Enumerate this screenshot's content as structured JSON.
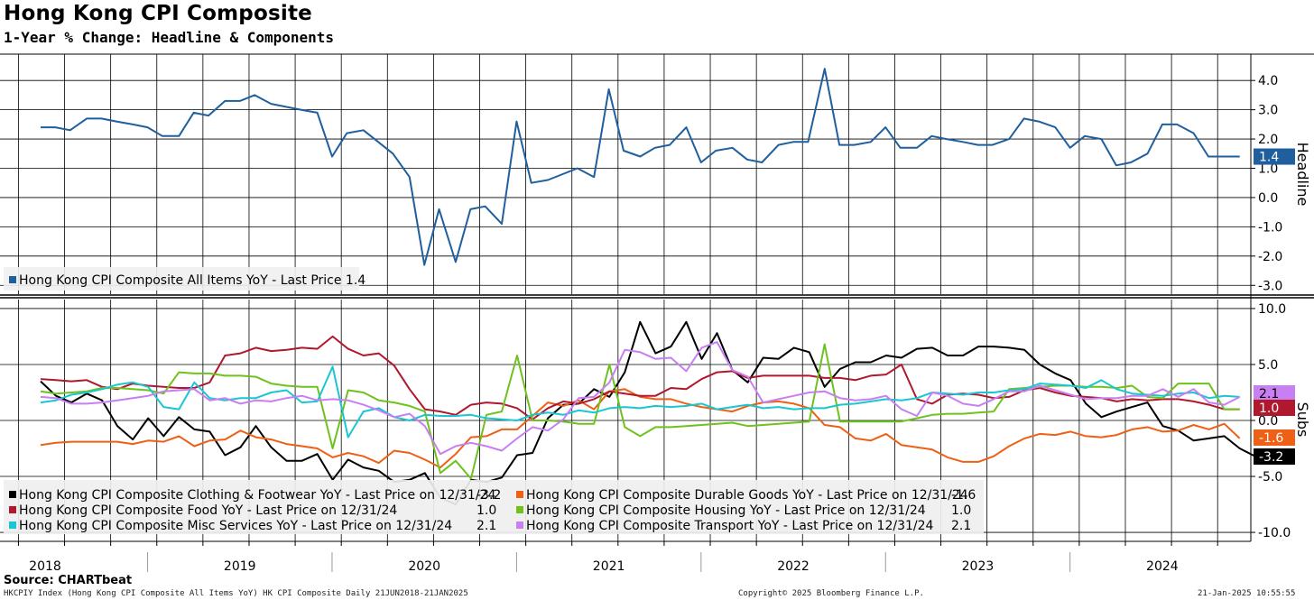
{
  "title": "Hong Kong CPI Composite",
  "subtitle": "1-Year % Change: Headline & Components",
  "source": "Source: CHARTbeat",
  "footer": {
    "left": "HKCPIY Index (Hong Kong CPI Composite All Items YoY) HK CPI Composite  Daily 21JUN2018-21JAN2025",
    "center": "Copyright© 2025 Bloomberg Finance L.P.",
    "right": "21-Jan-2025 10:55:55"
  },
  "chart_data": [
    {
      "type": "line",
      "panel": "top",
      "ylabel": "Headline",
      "ylim": [
        -3.3,
        4.9
      ],
      "yticks": [
        4.0,
        3.0,
        2.0,
        1.0,
        0.0,
        -1.0,
        -2.0,
        -3.0
      ],
      "ytick_labels": [
        "4.0",
        "3.0",
        "2.0",
        "1.0",
        "0.0",
        "-1.0",
        "-2.0",
        "-3.0"
      ],
      "grid": true,
      "legend_position": "bottom-left",
      "series": [
        {
          "name": "Hong Kong CPI Composite All Items YoY - Last Price 1.4",
          "color": "#1f5f9e",
          "last_label": "1.4",
          "x": [
            2018.42,
            2018.5,
            2018.58,
            2018.67,
            2018.75,
            2018.83,
            2018.92,
            2019.0,
            2019.08,
            2019.17,
            2019.25,
            2019.33,
            2019.42,
            2019.5,
            2019.58,
            2019.67,
            2019.75,
            2019.83,
            2019.92,
            2020.0,
            2020.08,
            2020.17,
            2020.25,
            2020.33,
            2020.42,
            2020.5,
            2020.58,
            2020.67,
            2020.75,
            2020.83,
            2020.92,
            2021.0,
            2021.08,
            2021.17,
            2021.25,
            2021.33,
            2021.42,
            2021.5,
            2021.58,
            2021.67,
            2021.75,
            2021.83,
            2021.92,
            2022.0,
            2022.08,
            2022.17,
            2022.25,
            2022.33,
            2022.42,
            2022.5,
            2022.58,
            2022.67,
            2022.75,
            2022.83,
            2022.92,
            2023.0,
            2023.08,
            2023.17,
            2023.25,
            2023.33,
            2023.42,
            2023.5,
            2023.58,
            2023.67,
            2023.75,
            2023.83,
            2023.92,
            2024.0,
            2024.08,
            2024.17,
            2024.25,
            2024.33,
            2024.42,
            2024.5,
            2024.58,
            2024.67,
            2024.75,
            2024.83,
            2024.92
          ],
          "values": [
            2.4,
            2.4,
            2.3,
            2.7,
            2.7,
            2.6,
            2.5,
            2.4,
            2.1,
            2.1,
            2.9,
            2.8,
            3.3,
            3.3,
            3.5,
            3.2,
            3.1,
            3.0,
            2.9,
            1.4,
            2.2,
            2.3,
            1.9,
            1.5,
            0.7,
            -2.3,
            -0.4,
            -2.2,
            -0.4,
            -0.3,
            -0.9,
            2.6,
            0.5,
            0.6,
            0.8,
            1.0,
            0.7,
            3.7,
            1.6,
            1.4,
            1.7,
            1.8,
            2.4,
            1.2,
            1.6,
            1.7,
            1.3,
            1.2,
            1.8,
            1.9,
            1.9,
            4.4,
            1.8,
            1.8,
            1.9,
            2.4,
            1.7,
            1.7,
            2.1,
            2.0,
            1.9,
            1.8,
            1.8,
            2.0,
            2.7,
            2.6,
            2.4,
            1.7,
            2.1,
            2.0,
            1.1,
            1.2,
            1.5,
            2.5,
            2.5,
            2.2,
            1.4,
            1.4,
            1.4
          ]
        }
      ]
    },
    {
      "type": "line",
      "panel": "bottom",
      "ylabel": "Subs",
      "ylim": [
        -10.8,
        10.8
      ],
      "yticks": [
        10.0,
        5.0,
        0.0,
        -5.0,
        -10.0
      ],
      "ytick_labels": [
        "10.0",
        "5.0",
        "0.0",
        "-5.0",
        "-10.0"
      ],
      "grid": true,
      "legend_position": "bottom-left",
      "x_start": 2018.42,
      "x_step": 0.08333,
      "series": [
        {
          "name": "Hong Kong CPI Composite Clothing & Footwear YoY - Last Price on 12/31/24",
          "legend_value": "-3.2",
          "color": "#000000",
          "last_label": "-3.2",
          "values": [
            3.5,
            2.2,
            1.6,
            2.4,
            1.8,
            -0.5,
            -1.7,
            0.2,
            -1.4,
            0.3,
            -0.8,
            -1.0,
            -3.1,
            -2.4,
            -0.5,
            -2.4,
            -3.6,
            -3.6,
            -3.0,
            -5.3,
            -3.5,
            -4.2,
            -4.5,
            -5.5,
            -5.3,
            -4.7,
            -6.9,
            -7.5,
            -5.3,
            -5.5,
            -5.1,
            -3.1,
            -2.9,
            0.2,
            1.4,
            1.5,
            2.8,
            2.1,
            4.3,
            8.8,
            6.0,
            6.6,
            8.8,
            5.5,
            7.8,
            4.5,
            3.4,
            5.6,
            5.5,
            6.5,
            6.1,
            3.0,
            4.6,
            5.2,
            5.2,
            5.8,
            5.6,
            6.4,
            6.5,
            5.8,
            5.8,
            6.6,
            6.6,
            6.5,
            6.3,
            5.0,
            4.2,
            3.6,
            1.5,
            0.3,
            0.8,
            1.2,
            1.6,
            -0.5,
            -0.9,
            -1.8,
            -1.6,
            -1.4,
            -2.5,
            -3.2
          ]
        },
        {
          "name": "Hong Kong CPI Composite Durable Goods YoY - Last Price on 12/31/24",
          "legend_value": "-1.6",
          "color": "#ee6015",
          "last_label": "-1.6",
          "values": [
            -2.2,
            -2.0,
            -1.9,
            -1.9,
            -1.9,
            -1.9,
            -2.1,
            -1.8,
            -1.9,
            -1.4,
            -2.3,
            -1.8,
            -1.7,
            -0.9,
            -1.5,
            -1.7,
            -2.1,
            -2.3,
            -2.5,
            -3.3,
            -2.9,
            -3.2,
            -3.8,
            -2.7,
            -2.9,
            -3.5,
            -4.2,
            -3.0,
            -1.5,
            -1.4,
            -0.8,
            -0.8,
            0.4,
            1.6,
            1.3,
            1.8,
            1.0,
            2.6,
            2.8,
            2.1,
            1.9,
            1.9,
            1.5,
            1.2,
            1.0,
            0.8,
            1.3,
            1.6,
            1.7,
            1.5,
            1.1,
            -0.4,
            -0.6,
            -1.6,
            -1.8,
            -1.2,
            -2.2,
            -2.4,
            -2.6,
            -3.3,
            -3.7,
            -3.7,
            -3.2,
            -2.3,
            -1.6,
            -1.2,
            -1.3,
            -1.0,
            -1.4,
            -1.5,
            -1.3,
            -0.8,
            -0.6,
            -1.0,
            -0.9,
            -0.4,
            -0.8,
            -0.3,
            -1.6
          ]
        },
        {
          "name": "Hong Kong CPI Composite Food YoY - Last Price on 12/31/24",
          "legend_value": "1.0",
          "color": "#b0182d",
          "last_label": "1.0",
          "values": [
            3.7,
            3.6,
            3.5,
            3.6,
            3.0,
            2.8,
            3.3,
            3.1,
            3.0,
            2.9,
            2.9,
            3.4,
            5.8,
            6.0,
            6.5,
            6.2,
            6.3,
            6.5,
            6.4,
            7.5,
            6.4,
            5.8,
            6.0,
            4.9,
            2.8,
            1.0,
            0.8,
            0.5,
            1.4,
            1.6,
            1.5,
            1.1,
            0.1,
            1.1,
            1.7,
            1.5,
            1.9,
            2.6,
            2.4,
            2.2,
            2.2,
            2.9,
            2.8,
            3.7,
            4.3,
            4.4,
            3.8,
            4.0,
            4.0,
            4.0,
            4.0,
            3.8,
            3.8,
            3.6,
            4.0,
            4.1,
            5.0,
            1.9,
            1.5,
            2.3,
            2.4,
            2.3,
            2.0,
            2.1,
            2.7,
            2.9,
            2.5,
            2.2,
            2.1,
            2.0,
            1.7,
            1.9,
            1.8,
            1.9,
            1.9,
            1.7,
            1.4,
            1.0,
            1.0
          ]
        },
        {
          "name": "Hong Kong CPI Composite Housing YoY - Last Price on 12/31/24",
          "legend_value": "1.0",
          "color": "#6ec21d",
          "last_label": "1.0",
          "values": [
            2.6,
            2.4,
            2.5,
            2.6,
            2.9,
            2.9,
            2.8,
            2.7,
            2.4,
            4.3,
            4.2,
            4.2,
            4.0,
            4.0,
            3.9,
            3.3,
            3.1,
            3.0,
            3.0,
            -2.5,
            2.7,
            2.5,
            1.8,
            1.6,
            1.3,
            0.8,
            -4.7,
            -3.6,
            -5.2,
            0.5,
            0.8,
            5.8,
            0.0,
            0.0,
            -0.1,
            -0.3,
            -0.3,
            5.0,
            -0.6,
            -1.4,
            -0.6,
            -0.6,
            -0.5,
            -0.4,
            -0.3,
            -0.2,
            -0.5,
            -0.4,
            -0.3,
            -0.2,
            -0.1,
            6.8,
            -0.1,
            -0.1,
            -0.1,
            -0.1,
            -0.1,
            0.2,
            0.5,
            0.6,
            0.6,
            0.7,
            0.8,
            2.8,
            2.9,
            3.0,
            3.1,
            3.1,
            3.0,
            3.0,
            2.9,
            3.1,
            2.1,
            2.0,
            3.3,
            3.3,
            3.3,
            1.0,
            1.0
          ]
        },
        {
          "name": "Hong Kong CPI Composite Misc Services YoY - Last Price on 12/31/24",
          "legend_value": "2.1",
          "color": "#19c6d2",
          "last_label": "2.1",
          "values": [
            1.6,
            1.8,
            2.3,
            2.5,
            2.8,
            3.2,
            3.4,
            3.0,
            1.2,
            1.0,
            3.4,
            2.0,
            1.8,
            2.0,
            2.0,
            2.5,
            2.7,
            1.6,
            1.7,
            4.8,
            -1.5,
            0.8,
            1.1,
            0.3,
            0.0,
            0.5,
            0.4,
            0.4,
            0.5,
            0.2,
            0.1,
            0.0,
            0.5,
            0.7,
            0.5,
            0.9,
            0.7,
            1.1,
            1.2,
            1.1,
            1.3,
            1.2,
            1.3,
            1.5,
            1.0,
            1.2,
            1.4,
            1.1,
            1.2,
            1.0,
            1.1,
            1.1,
            1.4,
            1.5,
            1.7,
            1.9,
            1.8,
            2.0,
            2.5,
            2.4,
            2.3,
            2.5,
            2.5,
            2.7,
            2.8,
            3.3,
            3.2,
            3.1,
            2.9,
            3.6,
            2.8,
            2.4,
            2.3,
            2.2,
            2.4,
            2.5,
            2.0,
            2.2,
            2.1
          ]
        },
        {
          "name": "Hong Kong CPI Composite Transport YoY - Last Price on 12/31/24",
          "legend_value": "2.1",
          "color": "#c77ff2",
          "last_label": "2.1",
          "values": [
            2.1,
            2.0,
            1.5,
            1.5,
            1.6,
            1.8,
            2.0,
            2.2,
            2.6,
            2.7,
            2.8,
            1.8,
            2.0,
            1.5,
            1.8,
            1.7,
            2.0,
            2.2,
            1.8,
            1.9,
            1.8,
            1.4,
            0.9,
            0.3,
            0.6,
            -0.5,
            -3.0,
            -2.3,
            -2.0,
            -2.3,
            -2.7,
            -1.6,
            -0.6,
            -0.9,
            0.1,
            2.0,
            2.1,
            3.4,
            6.3,
            6.1,
            5.5,
            5.6,
            4.4,
            6.5,
            7.0,
            4.5,
            3.9,
            1.6,
            1.9,
            2.2,
            2.5,
            2.6,
            2.0,
            1.8,
            1.9,
            2.2,
            1.0,
            0.4,
            2.5,
            2.2,
            1.5,
            1.3,
            1.9,
            2.6,
            2.6,
            3.1,
            2.7,
            2.3,
            1.9,
            2.0,
            2.0,
            2.2,
            2.2,
            2.8,
            2.1,
            2.8,
            1.6,
            1.4,
            2.1
          ]
        }
      ]
    }
  ],
  "xaxis": {
    "years": [
      "2018",
      "2019",
      "2020",
      "2021",
      "2022",
      "2023",
      "2024"
    ],
    "start": 2018.2,
    "end": 2024.98
  }
}
